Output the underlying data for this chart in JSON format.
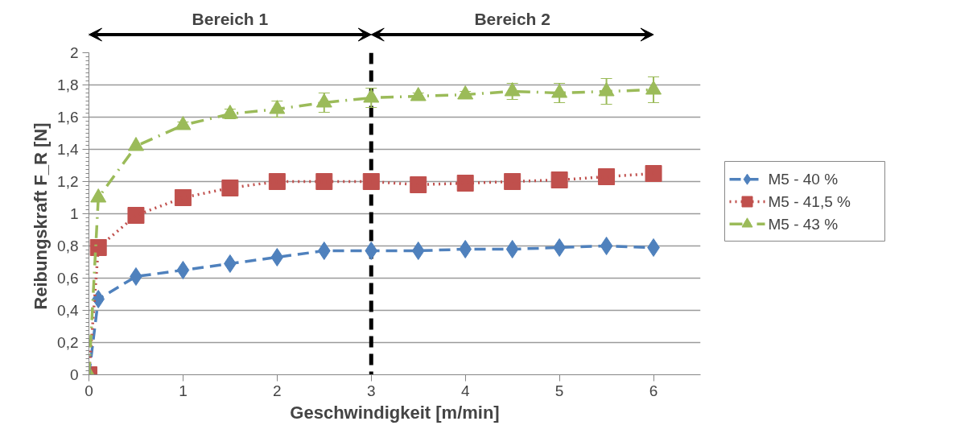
{
  "chart_data": {
    "type": "line",
    "xlabel": "Geschwindigkeit [m/min]",
    "ylabel": "Reibungskraft  F_R [N]",
    "x": [
      0,
      0.1,
      0.5,
      1,
      1.5,
      2,
      2.5,
      3,
      3.5,
      4,
      4.5,
      5,
      5.5,
      6
    ],
    "series": [
      {
        "name": "M5 - 40 %",
        "color": "#4f81bd",
        "marker": "diamond",
        "line_style": "dashed",
        "values": [
          0,
          0.47,
          0.61,
          0.65,
          0.69,
          0.73,
          0.77,
          0.77,
          0.77,
          0.78,
          0.78,
          0.79,
          0.8,
          0.79
        ]
      },
      {
        "name": "M5 - 41,5 %",
        "color": "#c0504d",
        "marker": "square",
        "line_style": "dotted",
        "values": [
          0,
          0.79,
          0.99,
          1.1,
          1.16,
          1.2,
          1.2,
          1.2,
          1.18,
          1.19,
          1.2,
          1.21,
          1.23,
          1.25
        ],
        "errors": [
          null,
          null,
          null,
          null,
          null,
          null,
          null,
          null,
          null,
          null,
          0.03,
          0.05,
          0.05,
          null
        ]
      },
      {
        "name": "M5 - 43 %",
        "color": "#9bbb59",
        "marker": "triangle",
        "line_style": "dashdot",
        "values": [
          0,
          1.1,
          1.42,
          1.55,
          1.62,
          1.65,
          1.69,
          1.72,
          1.73,
          1.74,
          1.76,
          1.75,
          1.76,
          1.77
        ],
        "errors": [
          null,
          null,
          null,
          0.02,
          0.03,
          0.05,
          0.06,
          0.06,
          0.02,
          0.02,
          0.05,
          0.06,
          0.08,
          0.08
        ]
      }
    ],
    "xlim": [
      0,
      6.5
    ],
    "ylim": [
      0,
      2
    ],
    "xticks": [
      0,
      1,
      2,
      3,
      4,
      5,
      6
    ],
    "yticks": [
      0,
      {
        "value": 0.2,
        "label": "0,2"
      },
      {
        "value": 0.4,
        "label": "0,4"
      },
      {
        "value": 0.6,
        "label": "0,6"
      },
      {
        "value": 0.8,
        "label": "0,8"
      },
      1,
      {
        "value": 1.2,
        "label": "1,2"
      },
      {
        "value": 1.4,
        "label": "1,4"
      },
      {
        "value": 1.6,
        "label": "1,6"
      },
      {
        "value": 1.8,
        "label": "1,8"
      },
      2
    ],
    "ref_lines": [
      {
        "axis": "x",
        "value": 3,
        "color": "#000000",
        "line_style": "dashed"
      }
    ],
    "annotations": [
      "Bereich 1",
      "Bereich 2"
    ],
    "grid": "y",
    "legend": "right"
  }
}
